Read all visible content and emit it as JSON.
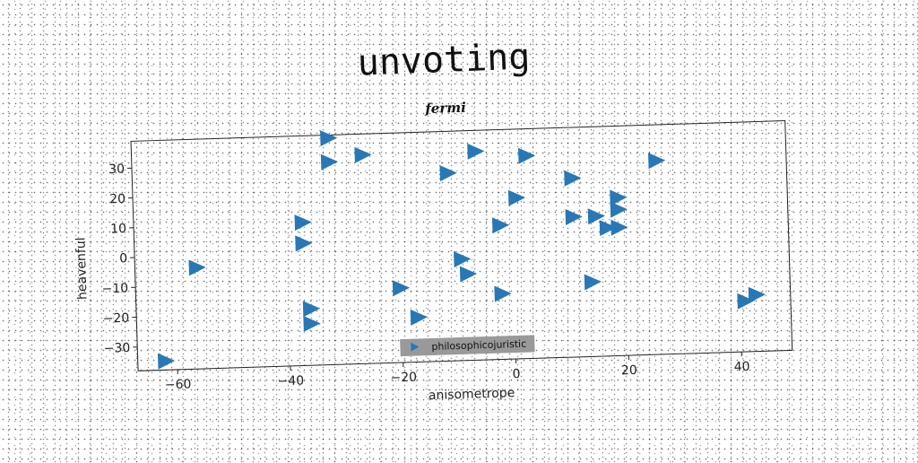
{
  "chart_data": {
    "type": "scatter",
    "title": "unvoting",
    "subtitle": "fermi",
    "xlabel": "anisometrope",
    "ylabel": "heavenful",
    "xlim": [
      -67,
      49
    ],
    "ylim": [
      -38,
      39
    ],
    "xticks": [
      -60,
      -40,
      -20,
      0,
      20,
      40
    ],
    "yticks": [
      -30,
      -20,
      -10,
      0,
      10,
      20,
      30
    ],
    "xtick_labels": [
      "−60",
      "−40",
      "−20",
      "0",
      "20",
      "40"
    ],
    "ytick_labels": [
      "−30",
      "−20",
      "−10",
      "0",
      "10",
      "20",
      "30"
    ],
    "grid": false,
    "marker": "triangle-right",
    "color": "#2878b5",
    "legend_position": "bottom-center",
    "legend_bg": "#999999",
    "series": [
      {
        "name": "philosophicojuristic",
        "points": [
          [
            -32,
            38
          ],
          [
            -32,
            30
          ],
          [
            -26,
            32
          ],
          [
            -6,
            32
          ],
          [
            3,
            30
          ],
          [
            26,
            27
          ],
          [
            -11,
            25
          ],
          [
            11,
            22
          ],
          [
            1,
            16
          ],
          [
            19,
            15
          ],
          [
            -37,
            10
          ],
          [
            19,
            11
          ],
          [
            11,
            9
          ],
          [
            15,
            9
          ],
          [
            17,
            5
          ],
          [
            19,
            5
          ],
          [
            -2,
            7
          ],
          [
            -37,
            3
          ],
          [
            -56,
            -4
          ],
          [
            -9,
            -4
          ],
          [
            -8,
            -9
          ],
          [
            -20,
            -13
          ],
          [
            14,
            -13
          ],
          [
            -2,
            -16
          ],
          [
            -36,
            -19
          ],
          [
            43,
            -19
          ],
          [
            41,
            -21
          ],
          [
            -36,
            -24
          ],
          [
            -17,
            -23
          ],
          [
            -62,
            -35
          ]
        ]
      }
    ]
  }
}
